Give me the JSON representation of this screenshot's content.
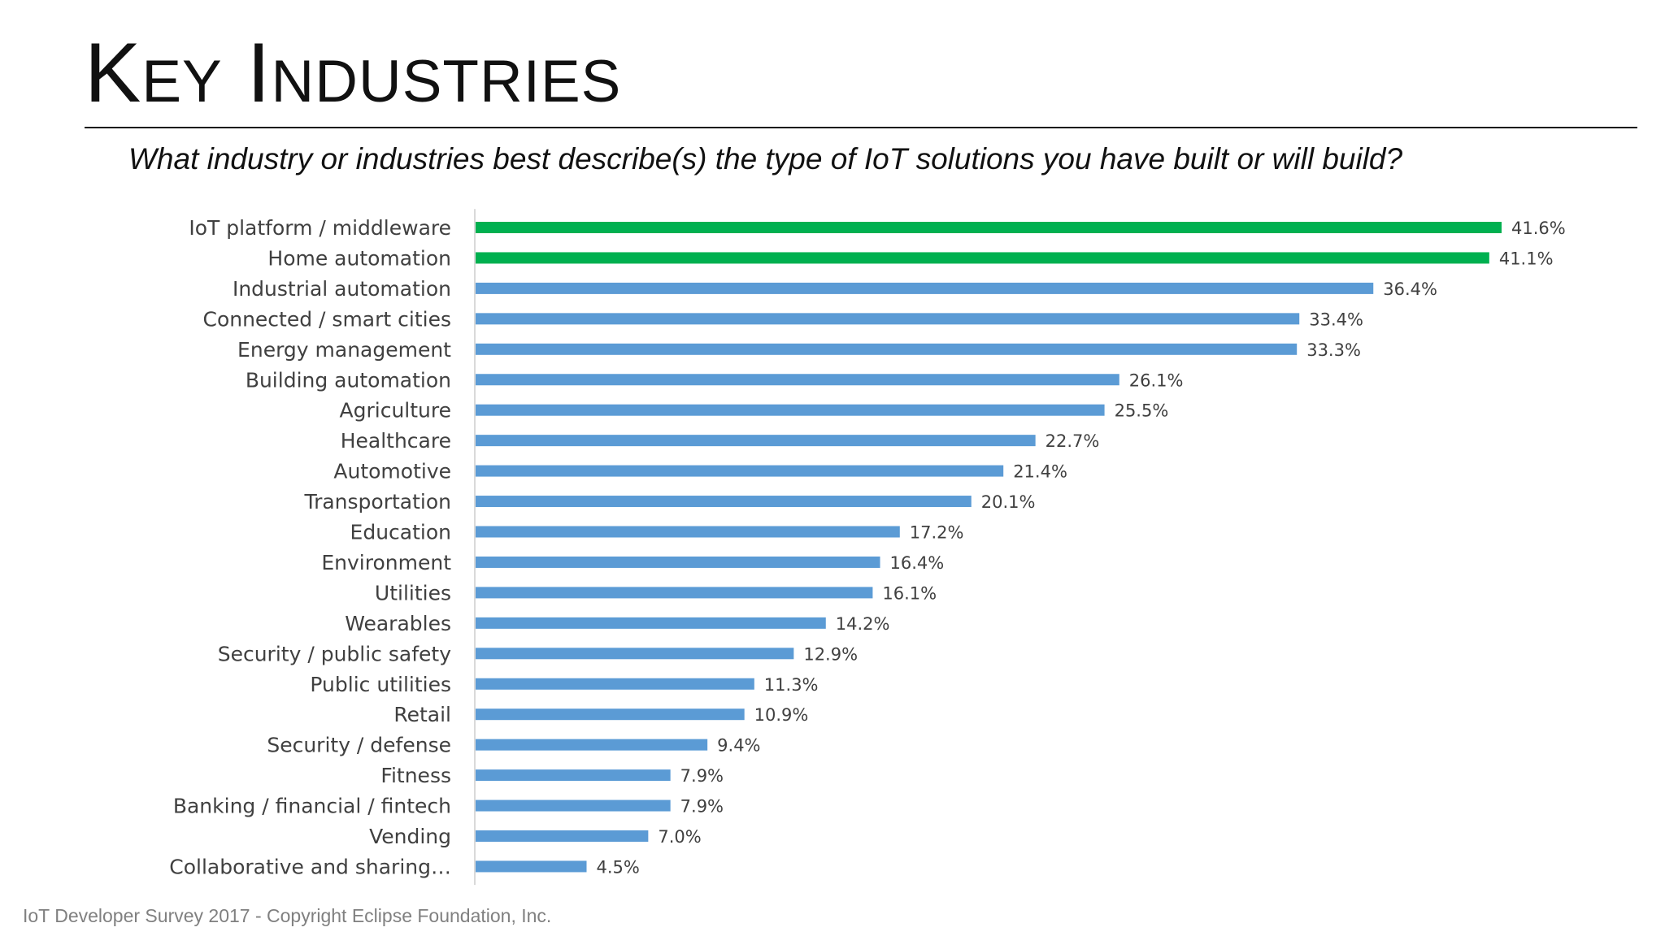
{
  "slide": {
    "title": "Key Industries",
    "question": "What industry or industries best describe(s) the type of IoT solutions you have built or will build?",
    "footer": "IoT Developer Survey 2017 - Copyright Eclipse Foundation, Inc."
  },
  "colors": {
    "highlight": "#00b050",
    "bar": "#5b9bd5",
    "label": "#404040",
    "axis": "#d9d9d9",
    "rule": "#111111"
  },
  "chart_data": {
    "type": "bar",
    "orientation": "horizontal",
    "categories": [
      "IoT platform / middleware",
      "Home automation",
      "Industrial automation",
      "Connected / smart cities",
      "Energy management",
      "Building automation",
      "Agriculture",
      "Healthcare",
      "Automotive",
      "Transportation",
      "Education",
      "Environment",
      "Utilities",
      "Wearables",
      "Security / public safety",
      "Public utilities",
      "Retail",
      "Security / defense",
      "Fitness",
      "Banking / financial / fintech",
      "Vending",
      "Collaborative and sharing…"
    ],
    "values": [
      41.6,
      41.1,
      36.4,
      33.4,
      33.3,
      26.1,
      25.5,
      22.7,
      21.4,
      20.1,
      17.2,
      16.4,
      16.1,
      14.2,
      12.9,
      11.3,
      10.9,
      9.4,
      7.9,
      7.9,
      7.0,
      4.5
    ],
    "data_labels": [
      "41.6%",
      "41.1%",
      "36.4%",
      "33.4%",
      "33.3%",
      "26.1%",
      "25.5%",
      "22.7%",
      "21.4%",
      "20.1%",
      "17.2%",
      "16.4%",
      "16.1%",
      "14.2%",
      "12.9%",
      "11.3%",
      "10.9%",
      "9.4%",
      "7.9%",
      "7.9%",
      "7.0%",
      "4.5%"
    ],
    "highlighted": [
      0,
      1
    ],
    "unit": "%",
    "xlim": [
      0,
      45
    ],
    "grid": false,
    "legend": "none"
  }
}
